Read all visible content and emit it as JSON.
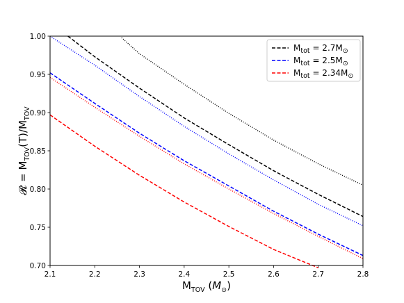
{
  "chart_data": {
    "type": "line",
    "xlim": [
      2.1,
      2.8
    ],
    "ylim": [
      0.7,
      1.0
    ],
    "x_ticks": [
      "2.1",
      "2.2",
      "2.3",
      "2.4",
      "2.5",
      "2.6",
      "2.7",
      "2.8"
    ],
    "y_ticks": [
      "0.70",
      "0.75",
      "0.80",
      "0.85",
      "0.90",
      "0.95",
      "1.00"
    ],
    "xlabel": {
      "main": "M",
      "sub": "TOV",
      "rest": " (",
      "unit": "M",
      "unit_sub": "⊙",
      "close": ")"
    },
    "ylabel": {
      "pre": "𝓡 = M",
      "sub1": "TOV",
      "mid": "(T)/M",
      "sub2": "TOV"
    },
    "grid": false,
    "legend_placement": "top-right",
    "legend": [
      {
        "prefix": "M",
        "sub": "tot",
        "value": " = 2.7M",
        "sun": "⊙",
        "color": "#000000"
      },
      {
        "prefix": "M",
        "sub": "tot",
        "value": " = 2.5M",
        "sun": "⊙",
        "color": "#0000ff"
      },
      {
        "prefix": "M",
        "sub": "tot",
        "value": " = 2.34M",
        "sun": "⊙",
        "color": "#ff0000"
      }
    ],
    "series": [
      {
        "color": "#000000",
        "dash": "dashed",
        "x": [
          2.14,
          2.2,
          2.3,
          2.4,
          2.5,
          2.6,
          2.7,
          2.8
        ],
        "y": [
          1.0,
          0.973,
          0.932,
          0.893,
          0.858,
          0.824,
          0.793,
          0.764
        ]
      },
      {
        "color": "#000000",
        "dash": "dotted",
        "x": [
          2.26,
          2.3,
          2.4,
          2.5,
          2.6,
          2.7,
          2.8
        ],
        "y": [
          0.998,
          0.977,
          0.937,
          0.899,
          0.864,
          0.833,
          0.805
        ]
      },
      {
        "color": "#0000ff",
        "dash": "dashed",
        "x": [
          2.1,
          2.2,
          2.3,
          2.4,
          2.5,
          2.6,
          2.7,
          2.8
        ],
        "y": [
          0.952,
          0.912,
          0.873,
          0.837,
          0.804,
          0.771,
          0.741,
          0.713
        ]
      },
      {
        "color": "#0000ff",
        "dash": "dotted",
        "x": [
          2.1,
          2.2,
          2.3,
          2.4,
          2.5,
          2.6,
          2.7,
          2.8
        ],
        "y": [
          1.0,
          0.962,
          0.921,
          0.882,
          0.846,
          0.812,
          0.78,
          0.752
        ]
      },
      {
        "color": "#ff0000",
        "dash": "dashed",
        "x": [
          2.1,
          2.2,
          2.3,
          2.4,
          2.5,
          2.6,
          2.7
        ],
        "y": [
          0.897,
          0.856,
          0.818,
          0.783,
          0.751,
          0.721,
          0.697
        ]
      },
      {
        "color": "#ff0000",
        "dash": "dotted",
        "x": [
          2.1,
          2.2,
          2.3,
          2.4,
          2.5,
          2.6,
          2.7,
          2.8
        ],
        "y": [
          0.946,
          0.907,
          0.869,
          0.833,
          0.8,
          0.768,
          0.738,
          0.709
        ]
      }
    ]
  }
}
